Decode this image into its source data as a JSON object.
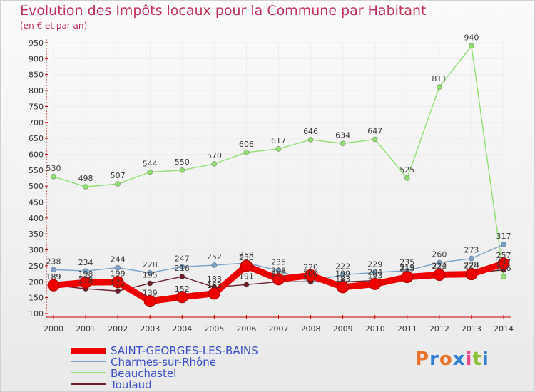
{
  "title": "Evolution des Impôts locaux pour la Commune par Habitant",
  "subtitle": "(en € et par an)",
  "logo": "Proxiti",
  "colors": {
    "title": "#c0305a",
    "legend_text": "#3a4fc6",
    "axis": "#cc0000",
    "grid": "#ececec"
  },
  "chart_data": {
    "type": "line",
    "x": [
      "2000",
      "2001",
      "2002",
      "2003",
      "2004",
      "2005",
      "2006",
      "2007",
      "2008",
      "2009",
      "2010",
      "2011",
      "2012",
      "2013",
      "2014"
    ],
    "ylim": [
      100,
      950
    ],
    "yticks": [
      100,
      150,
      200,
      250,
      300,
      350,
      400,
      450,
      500,
      550,
      600,
      650,
      700,
      750,
      800,
      850,
      900,
      950
    ],
    "grid": true,
    "legend_position": "bottom-left",
    "series": [
      {
        "name": "SAINT-GEORGES-LES-BAINS",
        "color": "#ee0000",
        "values": [
          189,
          198,
          199,
          139,
          152,
          163,
          250,
          208,
          220,
          183,
          193,
          215,
          222,
          224,
          257
        ]
      },
      {
        "name": "Charmes-sur-Rhône",
        "color": "#7aa3c9",
        "values": [
          238,
          234,
          244,
          228,
          247,
          252,
          259,
          235,
          200,
          222,
          229,
          235,
          260,
          273,
          317
        ]
      },
      {
        "name": "Beauchastel",
        "color": "#8fe070",
        "values": [
          530,
          498,
          507,
          544,
          550,
          570,
          606,
          617,
          646,
          634,
          647,
          525,
          811,
          940,
          216
        ]
      },
      {
        "name": "Toulaud",
        "color": "#6b1f2a",
        "values": [
          189,
          178,
          171,
          195,
          216,
          183,
          191,
          200,
          200,
          199,
          204,
          219,
          224,
          228,
          237
        ]
      }
    ]
  }
}
